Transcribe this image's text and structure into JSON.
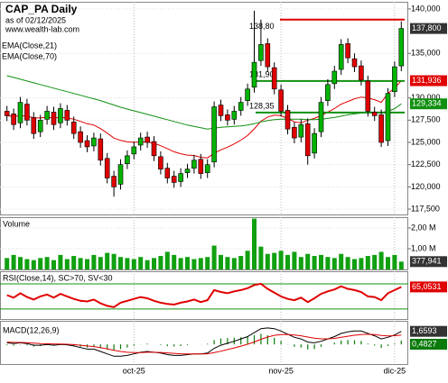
{
  "header": {
    "title": "CAP_PA Daily",
    "asof": "as of 02/12/2025",
    "site": "www.wealth-lab.com"
  },
  "chart_data": [
    {
      "type": "candlestick",
      "categories": [
        null,
        null,
        null,
        null,
        null,
        null,
        null,
        null,
        null,
        null,
        null,
        null,
        null,
        null,
        null,
        null,
        null,
        null,
        null,
        "oct-25",
        null,
        null,
        null,
        null,
        null,
        null,
        null,
        null,
        null,
        null,
        null,
        null,
        null,
        null,
        null,
        null,
        null,
        null,
        null,
        null,
        null,
        "nov-25",
        null,
        null,
        null,
        null,
        null,
        null,
        null,
        null,
        null,
        null,
        null,
        null,
        null,
        null,
        null,
        null,
        "dic-25",
        null
      ],
      "open": [
        128500,
        128200,
        127200,
        129300,
        127800,
        126200,
        127600,
        128400,
        127200,
        128600,
        127300,
        126200,
        125200,
        124600,
        125400,
        123200,
        121200,
        120300,
        122600,
        123700,
        124700,
        125600,
        125100,
        123400,
        122100,
        121200,
        120600,
        121600,
        122100,
        123100,
        121600,
        122800,
        129200,
        128100,
        127600,
        128600,
        129700,
        131200,
        134200,
        136100,
        133400,
        130900,
        128600,
        126700,
        125600,
        127100,
        123800,
        126200,
        129700,
        131600,
        133200,
        136100,
        134400,
        133600,
        131900,
        128400,
        128100,
        125200,
        130700,
        133600
      ],
      "high": [
        129100,
        128800,
        130100,
        129900,
        128400,
        128100,
        129100,
        129000,
        129400,
        129200,
        127900,
        126800,
        125800,
        126100,
        126000,
        123800,
        121800,
        123100,
        124100,
        125100,
        126100,
        126200,
        125700,
        124000,
        122700,
        121800,
        122100,
        122600,
        123600,
        123700,
        123100,
        129600,
        129800,
        128700,
        129100,
        130100,
        131600,
        139800,
        138800,
        136700,
        134000,
        131500,
        129200,
        127300,
        127600,
        127700,
        126600,
        130100,
        132100,
        133600,
        136600,
        136700,
        135000,
        134200,
        132500,
        129000,
        128700,
        131100,
        134100,
        138600
      ],
      "low": [
        127400,
        126400,
        126600,
        126900,
        125400,
        125600,
        127000,
        126400,
        126600,
        126900,
        125400,
        124400,
        123900,
        124000,
        122400,
        120400,
        118900,
        119700,
        122000,
        123100,
        124100,
        124400,
        122900,
        121400,
        120400,
        119900,
        120000,
        121000,
        121500,
        120900,
        121000,
        122200,
        127400,
        126900,
        127000,
        128000,
        129100,
        130600,
        133600,
        132900,
        130400,
        127900,
        125900,
        124900,
        125000,
        122500,
        123200,
        125600,
        129100,
        131000,
        132600,
        133900,
        132900,
        131400,
        127900,
        127400,
        124500,
        124600,
        130100,
        133000
      ],
      "close": [
        128000,
        127000,
        129500,
        127500,
        126000,
        127500,
        128500,
        127000,
        128800,
        127500,
        126000,
        125000,
        124500,
        125500,
        123000,
        121000,
        120000,
        122500,
        123500,
        124500,
        125500,
        125000,
        123500,
        122000,
        121000,
        120500,
        121500,
        122000,
        123000,
        121500,
        122500,
        129000,
        128000,
        127500,
        128500,
        129500,
        131000,
        134000,
        136000,
        133500,
        131000,
        128500,
        126500,
        125500,
        127000,
        123500,
        126000,
        129500,
        131500,
        133000,
        136000,
        134500,
        133500,
        132000,
        128500,
        128000,
        125000,
        130500,
        133500,
        137800
      ],
      "close_label": "137,800",
      "up_color": "#00b400",
      "down_color": "#e00000",
      "label_color": "#333333",
      "ylim": [
        116900,
        140800
      ],
      "yticks": [
        {
          "value": 140000,
          "label": "140,000"
        },
        {
          "value": 135000,
          "label": "135,000"
        },
        {
          "value": 130000,
          "label": "130,000"
        },
        {
          "value": 127500,
          "label": "127,500"
        },
        {
          "value": 125000,
          "label": "125,000"
        },
        {
          "value": 122500,
          "label": "122,500"
        },
        {
          "value": 120000,
          "label": "120,000"
        },
        {
          "value": 117500,
          "label": "117,500"
        }
      ],
      "series": [
        {
          "name": "EMA(Close,21)",
          "color": "#e00000",
          "value_label": "131,936",
          "values": [
            128000,
            127900,
            128000,
            127950,
            127770,
            127750,
            127820,
            127750,
            127800,
            127760,
            127600,
            127360,
            127100,
            126950,
            126550,
            126040,
            125490,
            125220,
            125060,
            125010,
            125050,
            125040,
            124900,
            124630,
            124300,
            123950,
            123730,
            123570,
            123520,
            123330,
            123260,
            123780,
            124160,
            124460,
            124830,
            125250,
            125770,
            126520,
            127380,
            127850,
            128060,
            128010,
            127690,
            127310,
            127190,
            127500,
            127700,
            128000,
            128400,
            128800,
            129300,
            129600,
            129900,
            130100,
            130000,
            129800,
            129500,
            130500,
            131100,
            131936
          ]
        },
        {
          "name": "EMA(Close,70)",
          "color": "#109010",
          "value_label": "129,334",
          "values": [
            132500,
            132300,
            132100,
            131900,
            131700,
            131500,
            131300,
            131100,
            130900,
            130700,
            130500,
            130300,
            130100,
            129900,
            129700,
            129450,
            129200,
            128950,
            128750,
            128550,
            128350,
            128150,
            127950,
            127750,
            127550,
            127350,
            127150,
            126950,
            126800,
            126650,
            126500,
            126600,
            126700,
            126750,
            126800,
            126850,
            126950,
            127100,
            127300,
            127450,
            127550,
            127600,
            127600,
            127600,
            127600,
            127550,
            127550,
            127600,
            127700,
            127800,
            127950,
            128100,
            128200,
            128300,
            128350,
            128400,
            128350,
            128500,
            128800,
            129334
          ]
        }
      ],
      "levels": [
        {
          "value": 138800,
          "label": "138,80",
          "color": "#e00000"
        },
        {
          "value": 131900,
          "label": "131,90",
          "color": "#109010"
        },
        {
          "value": 128350,
          "label": "128,35",
          "color": "#109010"
        }
      ]
    },
    {
      "type": "bar",
      "title": "Volume",
      "color": "#10a010",
      "value_label": "377,941",
      "ylim": [
        0,
        2.52
      ],
      "yticks": [
        {
          "value": 2,
          "label": "2,00 M"
        },
        {
          "value": 1,
          "label": "1,00 M"
        }
      ],
      "values": [
        0.55,
        0.7,
        0.6,
        0.5,
        0.45,
        0.55,
        0.6,
        0.45,
        0.7,
        0.5,
        0.65,
        0.55,
        0.5,
        0.7,
        0.6,
        0.8,
        0.75,
        0.6,
        0.55,
        0.5,
        0.6,
        0.45,
        0.55,
        0.65,
        0.85,
        0.7,
        0.55,
        0.6,
        0.5,
        0.55,
        0.6,
        1.15,
        0.7,
        0.6,
        0.55,
        0.65,
        0.9,
        2.45,
        1.1,
        0.75,
        0.8,
        0.9,
        0.7,
        0.85,
        0.6,
        0.75,
        0.65,
        0.7,
        0.6,
        0.55,
        0.75,
        0.6,
        0.5,
        0.55,
        0.65,
        0.7,
        0.85,
        0.6,
        0.7,
        0.377941
      ]
    },
    {
      "type": "line",
      "title": "RSI(Close,14), SC>70, SV<30",
      "ylim": [
        14,
        90
      ],
      "bands": [
        70,
        30
      ],
      "band_color": "#109010",
      "series": [
        {
          "color": "#e00000",
          "value_label": "65,0531",
          "values": [
            52,
            48,
            55,
            49,
            45,
            50,
            53,
            48,
            54,
            50,
            46,
            43,
            42,
            45,
            39,
            35,
            33,
            40,
            43,
            46,
            49,
            47,
            43,
            40,
            38,
            37,
            40,
            42,
            45,
            41,
            44,
            60,
            57,
            55,
            58,
            60,
            63,
            68,
            70,
            62,
            56,
            50,
            46,
            44,
            48,
            41,
            47,
            54,
            58,
            61,
            66,
            62,
            60,
            57,
            50,
            49,
            44,
            55,
            60,
            65.0531
          ]
        }
      ]
    },
    {
      "type": "macd",
      "title": "MACD(12,26,9)",
      "ylim": [
        -2.5,
        3
      ],
      "histogram_color": "#0a7a0a",
      "histogram_label": "0,4827",
      "histogram": [
        -0.1,
        -0.16,
        -0.05,
        -0.12,
        -0.26,
        -0.21,
        -0.09,
        -0.15,
        -0.04,
        -0.07,
        -0.18,
        -0.3,
        -0.4,
        -0.32,
        -0.5,
        -0.64,
        -0.75,
        -0.6,
        -0.4,
        -0.16,
        0.03,
        0.1,
        0,
        -0.08,
        -0.22,
        -0.26,
        -0.21,
        -0.09,
        0.01,
        0.01,
        0.09,
        0.55,
        0.76,
        0.81,
        0.85,
        0.92,
        0.98,
        1.19,
        1.35,
        1.16,
        0.85,
        0.44,
        0.03,
        -0.3,
        -0.4,
        -0.64,
        -0.59,
        -0.31,
        -0.01,
        0.23,
        0.5,
        0.56,
        0.53,
        0.44,
        0.11,
        -0.15,
        -0.44,
        -0.19,
        0.09,
        0.4827
      ],
      "series": [
        {
          "color": "#000000",
          "value_label": "1,6593",
          "values": [
            0.2,
            0.1,
            0.2,
            0.1,
            -0.1,
            -0.1,
            0,
            -0.1,
            0,
            -0.05,
            -0.2,
            -0.4,
            -0.6,
            -0.6,
            -0.9,
            -1.2,
            -1.5,
            -1.5,
            -1.4,
            -1.2,
            -1,
            -0.9,
            -1,
            -1.1,
            -1.3,
            -1.4,
            -1.4,
            -1.3,
            -1.2,
            -1.2,
            -1.1,
            -0.5,
            -0.1,
            0.15,
            0.4,
            0.7,
            1.0,
            1.5,
            2.0,
            2.1,
            2.0,
            1.7,
            1.3,
            0.9,
            0.7,
            0.3,
            0.2,
            0.4,
            0.7,
            1.0,
            1.4,
            1.6,
            1.7,
            1.7,
            1.4,
            1.1,
            0.7,
            0.9,
            1.2,
            1.6593
          ]
        },
        {
          "color": "#e00000",
          "values": [
            0.3,
            0.26,
            0.25,
            0.22,
            0.16,
            0.11,
            0.09,
            0.05,
            0.04,
            0.02,
            -0.02,
            -0.1,
            -0.2,
            -0.28,
            -0.4,
            -0.56,
            -0.75,
            -0.9,
            -1.0,
            -1.04,
            -1.03,
            -1.0,
            -1.0,
            -1.02,
            -1.08,
            -1.14,
            -1.19,
            -1.21,
            -1.21,
            -1.21,
            -1.19,
            -1.05,
            -0.86,
            -0.66,
            -0.45,
            -0.22,
            0.02,
            0.31,
            0.65,
            0.94,
            1.15,
            1.26,
            1.27,
            1.2,
            1.1,
            0.94,
            0.79,
            0.71,
            0.71,
            0.77,
            0.9,
            1.04,
            1.17,
            1.26,
            1.29,
            1.25,
            1.14,
            1.09,
            1.11,
            1.1766
          ]
        }
      ]
    }
  ]
}
